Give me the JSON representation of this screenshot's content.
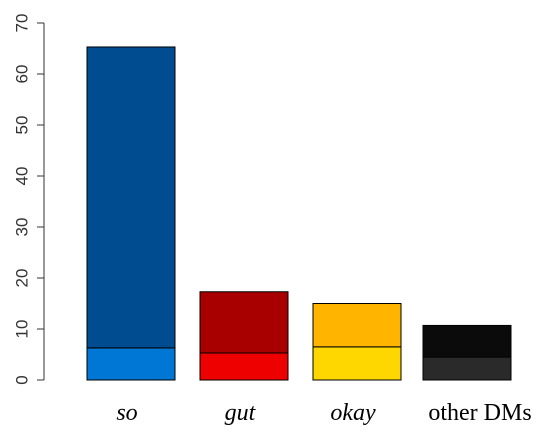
{
  "chart_data": {
    "type": "bar",
    "stacked": true,
    "categories": [
      {
        "label": "so",
        "italic": true
      },
      {
        "label": "gut",
        "italic": true
      },
      {
        "label": "okay",
        "italic": true
      },
      {
        "label": "other DMs",
        "italic": false
      }
    ],
    "series": [
      {
        "values": [
          6.3,
          5.3,
          6.5,
          4.5
        ],
        "colors": [
          "#0077d4",
          "#ef0000",
          "#ffd700",
          "#2a2a2a"
        ]
      },
      {
        "values": [
          59.0,
          12.0,
          8.5,
          6.2
        ],
        "colors": [
          "#004c91",
          "#a80000",
          "#ffb500",
          "#0b0b0b"
        ]
      }
    ],
    "totals": [
      65.3,
      17.3,
      15.0,
      10.7
    ],
    "ylim": [
      0,
      70
    ],
    "yticks": [
      "0",
      "10",
      "20",
      "30",
      "40",
      "50",
      "60",
      "70"
    ],
    "title": "",
    "xlabel": "",
    "ylabel": "",
    "grid": false,
    "legend": "none"
  }
}
